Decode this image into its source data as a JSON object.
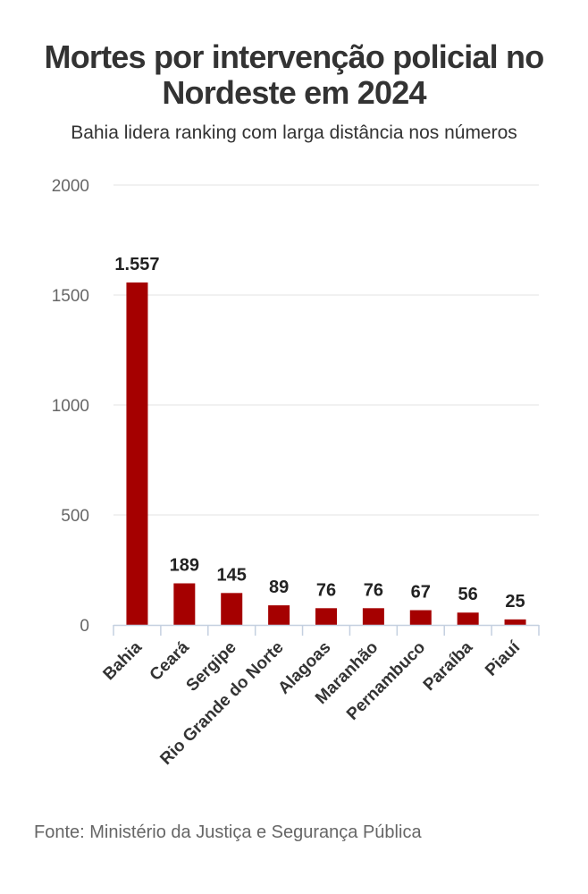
{
  "chart_data": {
    "type": "bar",
    "title": "Mortes por intervenção policial no Nordeste em 2024",
    "subtitle": "Bahia lidera ranking com larga distância nos números",
    "categories": [
      "Bahia",
      "Ceará",
      "Sergipe",
      "Rio Grande do Norte",
      "Alagoas",
      "Maranhão",
      "Pernambuco",
      "Paraíba",
      "Piauí"
    ],
    "values": [
      1557,
      189,
      145,
      89,
      76,
      76,
      67,
      56,
      25
    ],
    "data_labels": [
      "1.557",
      "189",
      "145",
      "89",
      "76",
      "76",
      "67",
      "56",
      "25"
    ],
    "yticks": [
      "0",
      "500",
      "1000",
      "1500",
      "2000"
    ],
    "ylim": [
      0,
      2000
    ],
    "xlabel": "",
    "ylabel": "",
    "grid": true,
    "legend": "none",
    "bar_color": "#a50000",
    "source": "Fonte: Ministério da Justiça e Segurança Pública"
  }
}
